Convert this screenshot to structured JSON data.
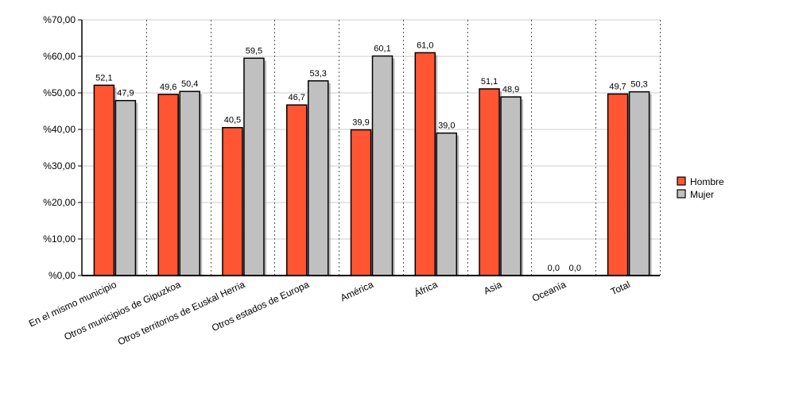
{
  "chart_data": {
    "type": "bar",
    "categories": [
      "En el mismo municipio",
      "Otros municipios de Gipuzkoa",
      "Otros territorios de Euskal Herria",
      "Otros estados de Europa",
      "América",
      "África",
      "Asia",
      "Oceanía",
      "Total"
    ],
    "series": [
      {
        "name": "Hombre",
        "color": "#ff5533",
        "values": [
          52.1,
          49.6,
          40.5,
          46.7,
          39.9,
          61.0,
          51.1,
          0.0,
          49.7
        ],
        "labels": [
          "52,1",
          "49,6",
          "40,5",
          "46,7",
          "39,9",
          "61,0",
          "51,1",
          "0,0",
          "49,7"
        ]
      },
      {
        "name": "Mujer",
        "color": "#c0c0c0",
        "values": [
          47.9,
          50.4,
          59.5,
          53.3,
          60.1,
          39.0,
          48.9,
          0.0,
          50.3
        ],
        "labels": [
          "47,9",
          "50,4",
          "59,5",
          "53,3",
          "60,1",
          "39,0",
          "48,9",
          "0,0",
          "50,3"
        ]
      }
    ],
    "ylim": [
      0,
      70
    ],
    "yticks": [
      0,
      10,
      20,
      30,
      40,
      50,
      60,
      70
    ],
    "ytick_labels": [
      "%0,00",
      "%10,00",
      "%20,00",
      "%30,00",
      "%40,00",
      "%50,00",
      "%60,00",
      "%70,00"
    ],
    "title": "",
    "xlabel": "",
    "ylabel": "",
    "legend": [
      "Hombre",
      "Mujer"
    ],
    "legend_position": "right",
    "grid": "horizontal solid, vertical dotted"
  }
}
